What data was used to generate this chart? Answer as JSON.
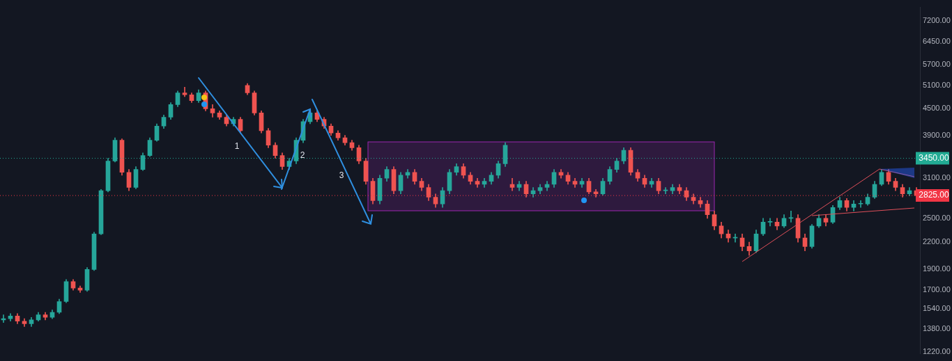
{
  "chart_data": {
    "type": "candlestick",
    "categories": [
      null,
      null,
      null,
      null,
      null,
      null,
      null,
      null,
      null,
      null,
      null,
      null,
      null,
      null,
      null,
      null,
      null,
      null,
      null,
      null,
      null,
      null,
      null,
      null,
      null,
      null,
      null,
      null,
      null,
      null,
      null,
      null,
      null,
      null,
      null,
      null,
      null,
      null,
      null,
      null,
      null,
      null,
      null,
      null,
      null,
      null,
      null,
      null,
      null,
      null,
      null,
      null,
      null,
      null,
      null,
      null,
      null,
      null,
      null,
      null,
      null,
      null,
      null,
      null,
      null,
      null,
      null,
      null,
      null,
      null,
      null,
      null,
      null,
      null,
      null,
      null,
      null,
      null,
      null,
      null,
      null,
      null,
      null,
      null,
      null,
      null,
      null,
      null,
      null,
      null,
      null,
      null,
      null,
      null,
      null,
      null,
      null,
      null,
      null,
      null,
      null,
      null,
      null,
      null,
      null,
      null,
      null,
      null,
      null,
      null,
      null,
      null,
      null,
      null,
      null,
      null,
      null,
      null,
      null,
      null,
      null,
      null,
      null,
      null,
      null,
      null,
      null,
      null,
      null,
      null,
      null,
      null
    ],
    "ohlc": [
      [
        1450,
        1490,
        1430,
        1460
      ],
      [
        1460,
        1500,
        1440,
        1480
      ],
      [
        1480,
        1500,
        1420,
        1440
      ],
      [
        1440,
        1460,
        1400,
        1420
      ],
      [
        1420,
        1470,
        1400,
        1450
      ],
      [
        1450,
        1510,
        1440,
        1490
      ],
      [
        1490,
        1510,
        1450,
        1470
      ],
      [
        1470,
        1530,
        1460,
        1510
      ],
      [
        1510,
        1620,
        1500,
        1600
      ],
      [
        1600,
        1800,
        1590,
        1780
      ],
      [
        1780,
        1800,
        1700,
        1720
      ],
      [
        1720,
        1740,
        1680,
        1700
      ],
      [
        1700,
        1920,
        1690,
        1900
      ],
      [
        1900,
        2320,
        1890,
        2300
      ],
      [
        2300,
        2920,
        2290,
        2900
      ],
      [
        2900,
        3450,
        2880,
        3400
      ],
      [
        3400,
        3850,
        3380,
        3800
      ],
      [
        3800,
        3830,
        3150,
        3200
      ],
      [
        3200,
        3250,
        2900,
        2950
      ],
      [
        2950,
        3300,
        2930,
        3250
      ],
      [
        3250,
        3550,
        3230,
        3500
      ],
      [
        3500,
        3850,
        3480,
        3800
      ],
      [
        3800,
        4150,
        3780,
        4100
      ],
      [
        4100,
        4350,
        4050,
        4300
      ],
      [
        4300,
        4650,
        4250,
        4600
      ],
      [
        4600,
        4950,
        4550,
        4900
      ],
      [
        4900,
        5050,
        4800,
        4850
      ],
      [
        4850,
        4900,
        4650,
        4700
      ],
      [
        4700,
        4980,
        4650,
        4900
      ],
      [
        4900,
        4950,
        4450,
        4500
      ],
      [
        4500,
        4600,
        4300,
        4400
      ],
      [
        4400,
        4450,
        4250,
        4300
      ],
      [
        4300,
        4350,
        4100,
        4150
      ],
      [
        4150,
        4300,
        4100,
        4250
      ],
      [
        4250,
        4300,
        3950,
        4000
      ],
      [
        5100,
        5150,
        4850,
        4900
      ],
      [
        4900,
        4950,
        4350,
        4400
      ],
      [
        4400,
        4450,
        3950,
        4000
      ],
      [
        4000,
        4050,
        3650,
        3700
      ],
      [
        3700,
        3750,
        3450,
        3500
      ],
      [
        3500,
        3550,
        3250,
        3300
      ],
      [
        3300,
        3450,
        3250,
        3400
      ],
      [
        3400,
        3850,
        3350,
        3800
      ],
      [
        3800,
        4250,
        3750,
        4200
      ],
      [
        4200,
        4450,
        4150,
        4400
      ],
      [
        4400,
        4450,
        4200,
        4250
      ],
      [
        4250,
        4300,
        4050,
        4100
      ],
      [
        4100,
        4150,
        3900,
        3950
      ],
      [
        3950,
        4000,
        3800,
        3850
      ],
      [
        3850,
        3900,
        3700,
        3750
      ],
      [
        3750,
        3800,
        3600,
        3650
      ],
      [
        3650,
        3700,
        3350,
        3400
      ],
      [
        3400,
        3450,
        3000,
        3050
      ],
      [
        3050,
        3100,
        2700,
        2750
      ],
      [
        2750,
        3150,
        2700,
        3100
      ],
      [
        3100,
        3300,
        3050,
        3250
      ],
      [
        3250,
        3300,
        2850,
        2900
      ],
      [
        2900,
        3200,
        2850,
        3150
      ],
      [
        3150,
        3250,
        3100,
        3200
      ],
      [
        3200,
        3250,
        3000,
        3050
      ],
      [
        3050,
        3100,
        2900,
        2950
      ],
      [
        2950,
        3000,
        2750,
        2800
      ],
      [
        2800,
        2850,
        2650,
        2700
      ],
      [
        2700,
        2950,
        2650,
        2900
      ],
      [
        2900,
        3250,
        2850,
        3200
      ],
      [
        3200,
        3350,
        3150,
        3300
      ],
      [
        3300,
        3350,
        3100,
        3150
      ],
      [
        3150,
        3200,
        3000,
        3050
      ],
      [
        3050,
        3100,
        2950,
        3000
      ],
      [
        3000,
        3100,
        2950,
        3050
      ],
      [
        3050,
        3200,
        3000,
        3150
      ],
      [
        3150,
        3400,
        3100,
        3350
      ],
      [
        3350,
        3750,
        3300,
        3700
      ],
      [
        3000,
        3100,
        2900,
        2950
      ],
      [
        2950,
        3050,
        2900,
        3000
      ],
      [
        3000,
        3050,
        2800,
        2850
      ],
      [
        2850,
        2950,
        2800,
        2900
      ],
      [
        2900,
        3000,
        2850,
        2950
      ],
      [
        2950,
        3050,
        2900,
        3000
      ],
      [
        3000,
        3250,
        2950,
        3200
      ],
      [
        3200,
        3250,
        3100,
        3150
      ],
      [
        3150,
        3200,
        3000,
        3050
      ],
      [
        3050,
        3100,
        2950,
        3000
      ],
      [
        3000,
        3100,
        2950,
        3050
      ],
      [
        3050,
        3100,
        2850,
        2880
      ],
      [
        2880,
        2920,
        2800,
        2850
      ],
      [
        2850,
        3100,
        2830,
        3050
      ],
      [
        3050,
        3300,
        3000,
        3250
      ],
      [
        3250,
        3450,
        3200,
        3400
      ],
      [
        3400,
        3650,
        3350,
        3600
      ],
      [
        3600,
        3650,
        3150,
        3200
      ],
      [
        3200,
        3250,
        3050,
        3100
      ],
      [
        3100,
        3150,
        2950,
        3000
      ],
      [
        3000,
        3100,
        2950,
        3050
      ],
      [
        3050,
        3100,
        2850,
        2900
      ],
      [
        2900,
        2950,
        2850,
        2900
      ],
      [
        2900,
        3000,
        2850,
        2950
      ],
      [
        2950,
        3000,
        2850,
        2900
      ],
      [
        2900,
        2950,
        2750,
        2800
      ],
      [
        2800,
        2850,
        2700,
        2750
      ],
      [
        2750,
        2800,
        2650,
        2700
      ],
      [
        2700,
        2750,
        2500,
        2550
      ],
      [
        2550,
        2600,
        2350,
        2400
      ],
      [
        2400,
        2450,
        2250,
        2300
      ],
      [
        2300,
        2350,
        2200,
        2250
      ],
      [
        2250,
        2300,
        2200,
        2250
      ],
      [
        2250,
        2300,
        2100,
        2150
      ],
      [
        2150,
        2200,
        2050,
        2100
      ],
      [
        2100,
        2350,
        2080,
        2300
      ],
      [
        2300,
        2500,
        2280,
        2450
      ],
      [
        2450,
        2500,
        2400,
        2450
      ],
      [
        2450,
        2500,
        2350,
        2400
      ],
      [
        2400,
        2550,
        2380,
        2500
      ],
      [
        2500,
        2600,
        2450,
        2500
      ],
      [
        2500,
        2550,
        2200,
        2250
      ],
      [
        2250,
        2300,
        2100,
        2150
      ],
      [
        2150,
        2420,
        2130,
        2400
      ],
      [
        2400,
        2550,
        2380,
        2500
      ],
      [
        2500,
        2550,
        2400,
        2450
      ],
      [
        2450,
        2680,
        2430,
        2650
      ],
      [
        2650,
        2800,
        2620,
        2750
      ],
      [
        2750,
        2780,
        2600,
        2650
      ],
      [
        2650,
        2750,
        2600,
        2700
      ],
      [
        2700,
        2750,
        2650,
        2700
      ],
      [
        2700,
        2850,
        2680,
        2800
      ],
      [
        2800,
        3050,
        2780,
        3000
      ],
      [
        3000,
        3250,
        2980,
        3200
      ],
      [
        3200,
        3250,
        3000,
        3050
      ],
      [
        3050,
        3100,
        2900,
        2950
      ],
      [
        2950,
        3000,
        2800,
        2850
      ],
      [
        2850,
        2950,
        2820,
        2900
      ],
      [
        2900,
        2950,
        2800,
        2825
      ]
    ],
    "log": "y",
    "ylim": [
      1210,
      7750
    ],
    "yticks": [
      {
        "value": 1220,
        "label": "1220.00"
      },
      {
        "value": 1380,
        "label": "1380.00"
      },
      {
        "value": 1540,
        "label": "1540.00"
      },
      {
        "value": 1700,
        "label": "1700.00"
      },
      {
        "value": 1900,
        "label": "1900.00"
      },
      {
        "value": 2200,
        "label": "2200.00"
      },
      {
        "value": 2500,
        "label": "2500.00"
      },
      {
        "value": 3100,
        "label": "3100.00"
      },
      {
        "value": 3900,
        "label": "3900.00"
      },
      {
        "value": 4500,
        "label": "4500.00"
      },
      {
        "value": 5100,
        "label": "5100.00"
      },
      {
        "value": 5700,
        "label": "5700.00"
      },
      {
        "value": 6450,
        "label": "6450.00"
      },
      {
        "value": 7200,
        "label": "7200.00"
      }
    ],
    "tick_labels": "y",
    "ref_lines": [
      {
        "axis": "y",
        "value": 3450,
        "label": "3450.00",
        "color": "#22ab94",
        "line_style": "dotted"
      },
      {
        "axis": "y",
        "value": 2825,
        "label": "2825.00",
        "color": "#f23645",
        "line_style": "dotted"
      }
    ],
    "annotations": [
      "1",
      "2",
      "3"
    ]
  }
}
